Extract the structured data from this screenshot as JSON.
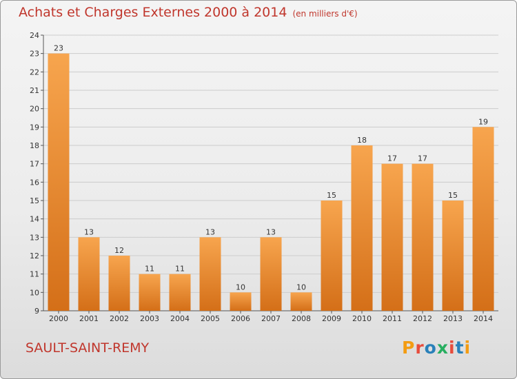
{
  "header": {
    "title": "Achats et Charges Externes 2000 à 2014",
    "unit": "(en milliers d'€)"
  },
  "footer": {
    "commune": "SAULT-SAINT-REMY",
    "logo_text": "Proxiti",
    "logo_colors": [
      "#f39c12",
      "#e74c3c",
      "#2980b9",
      "#27ae60",
      "#e74c3c",
      "#2980b9",
      "#f39c12"
    ]
  },
  "colors": {
    "bar_light": "#f7a54e",
    "bar_dark": "#d46f18",
    "accent": "#c0362c",
    "grid": "#cccccc"
  },
  "chart_data": {
    "type": "bar",
    "title": "Achats et Charges Externes 2000 à 2014",
    "subtitle": "(en milliers d'€)",
    "categories": [
      "2000",
      "2001",
      "2002",
      "2003",
      "2004",
      "2005",
      "2006",
      "2007",
      "2008",
      "2009",
      "2010",
      "2011",
      "2012",
      "2013",
      "2014"
    ],
    "values": [
      23,
      13,
      12,
      11,
      11,
      13,
      10,
      13,
      10,
      15,
      18,
      17,
      17,
      15,
      19
    ],
    "ylim": [
      9,
      24
    ],
    "yticks": [
      9,
      10,
      11,
      12,
      13,
      14,
      15,
      16,
      17,
      18,
      19,
      20,
      21,
      22,
      23,
      24
    ],
    "grid": true,
    "xlabel": "",
    "ylabel": ""
  }
}
